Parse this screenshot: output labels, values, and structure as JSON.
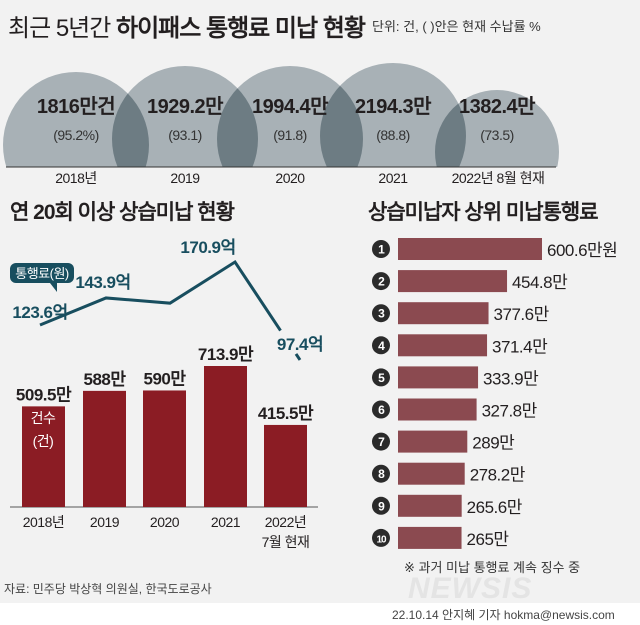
{
  "header": {
    "title_light": "최근 5년간",
    "title_bold": "하이패스 통행료 미납 현황",
    "unit_note": "단위: 건, ( )안은 현재 수납률 %"
  },
  "chart_data": [
    {
      "type": "bar",
      "title": "최근 5년간 하이패스 통행료 미납 현황",
      "categories": [
        "2018년",
        "2019",
        "2020",
        "2021",
        "2022년 8월 현재"
      ],
      "series": [
        {
          "values": [
            1816,
            1929.2,
            1994.4,
            2194.3,
            1382.4
          ],
          "labels": [
            "1816만건",
            "1929.2만",
            "1994.4만",
            "2194.3만",
            "1382.4만"
          ]
        },
        {
          "values": [
            95.2,
            93.1,
            91.8,
            88.8,
            73.5
          ],
          "labels": [
            "(95.2%)",
            "(93.1)",
            "(91.8)",
            "(88.8)",
            "(73.5)"
          ]
        }
      ],
      "colors": {
        "shape": "#a8b1b6",
        "overlap": "#6d7c83"
      }
    },
    {
      "type": "bar",
      "title": "연 20회 이상 상습미납 현황",
      "categories": [
        "2018년",
        "2019",
        "2020",
        "2021",
        "2022년\n7월 현재"
      ],
      "category_lines": [
        [
          "2018년"
        ],
        [
          "2019"
        ],
        [
          "2020"
        ],
        [
          "2021"
        ],
        [
          "2022년",
          "7월 현재"
        ]
      ],
      "series": [
        {
          "name": "건수 (건)",
          "name_lines": [
            "건수",
            "(건)"
          ],
          "type": "bar",
          "values": [
            509.5,
            588,
            590,
            713.9,
            415.5
          ],
          "labels": [
            "509.5만",
            "588만",
            "590만",
            "713.9만",
            "415.5만"
          ],
          "color": "#8b1c24"
        },
        {
          "name": "통행료(원)",
          "type": "line",
          "values": [
            123.6,
            143.9,
            140,
            170.9,
            97.4
          ],
          "labels": [
            "123.6억",
            "143.9억",
            "",
            "170.9억",
            "97.4억"
          ],
          "color": "#184e5f"
        }
      ]
    },
    {
      "type": "bar",
      "orientation": "horizontal",
      "title": "상습미납자 상위 미납통행료",
      "categories": [
        "1",
        "2",
        "3",
        "4",
        "5",
        "6",
        "7",
        "8",
        "9",
        "10"
      ],
      "values": [
        600.6,
        454.8,
        377.6,
        371.4,
        333.9,
        327.8,
        289,
        278.2,
        265.6,
        265
      ],
      "labels": [
        "600.6만원",
        "454.8만",
        "377.6만",
        "371.4만",
        "333.9만",
        "327.8만",
        "289만",
        "278.2만",
        "265.6만",
        "265만"
      ],
      "color": "#8b4a50",
      "note": "※ 과거 미납 통행료 계속 징수 중"
    }
  ],
  "footer": {
    "source": "자료: 민주당 박상혁 의원실, 한국도로공사",
    "credit": "22.10.14 안지혜 기자 hokma@newsis.com",
    "logo": "NEWSIS"
  }
}
